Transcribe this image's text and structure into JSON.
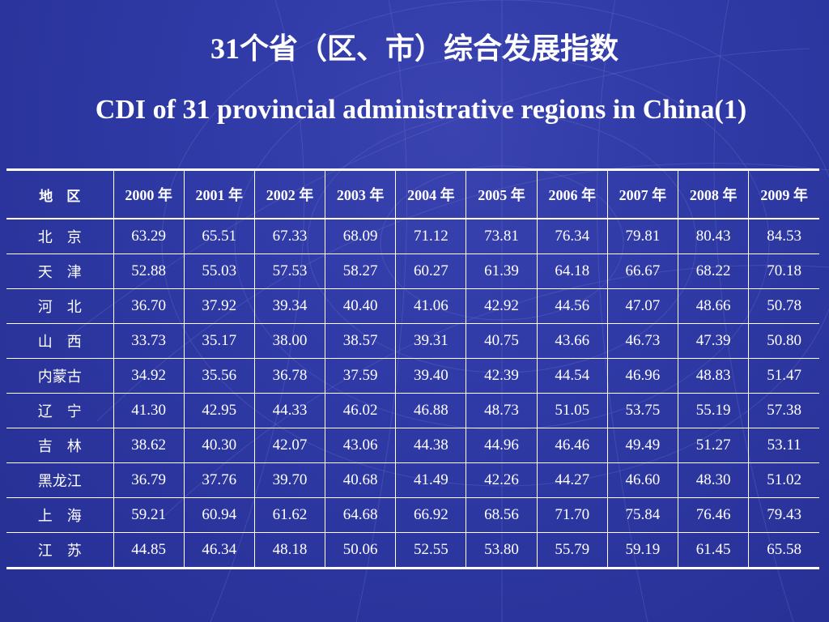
{
  "title_cn": "31个省（区、市）综合发展指数",
  "title_en": "CDI of 31 provincial administrative regions in China(1)",
  "table": {
    "headers": [
      "地　区",
      "2000 年",
      "2001 年",
      "2002 年",
      "2003 年",
      "2004 年",
      "2005 年",
      "2006 年",
      "2007 年",
      "2008 年",
      "2009 年"
    ],
    "rows": [
      [
        "北　京",
        "63.29",
        "65.51",
        "67.33",
        "68.09",
        "71.12",
        "73.81",
        "76.34",
        "79.81",
        "80.43",
        "84.53"
      ],
      [
        "天　津",
        "52.88",
        "55.03",
        "57.53",
        "58.27",
        "60.27",
        "61.39",
        "64.18",
        "66.67",
        "68.22",
        "70.18"
      ],
      [
        "河　北",
        "36.70",
        "37.92",
        "39.34",
        "40.40",
        "41.06",
        "42.92",
        "44.56",
        "47.07",
        "48.66",
        "50.78"
      ],
      [
        "山　西",
        "33.73",
        "35.17",
        "38.00",
        "38.57",
        "39.31",
        "40.75",
        "43.66",
        "46.73",
        "47.39",
        "50.80"
      ],
      [
        "内蒙古",
        "34.92",
        "35.56",
        "36.78",
        "37.59",
        "39.40",
        "42.39",
        "44.54",
        "46.96",
        "48.83",
        "51.47"
      ],
      [
        "辽　宁",
        "41.30",
        "42.95",
        "44.33",
        "46.02",
        "46.88",
        "48.73",
        "51.05",
        "53.75",
        "55.19",
        "57.38"
      ],
      [
        "吉　林",
        "38.62",
        "40.30",
        "42.07",
        "43.06",
        "44.38",
        "44.96",
        "46.46",
        "49.49",
        "51.27",
        "53.11"
      ],
      [
        "黑龙江",
        "36.79",
        "37.76",
        "39.70",
        "40.68",
        "41.49",
        "42.26",
        "44.27",
        "46.60",
        "48.30",
        "51.02"
      ],
      [
        "上　海",
        "59.21",
        "60.94",
        "61.62",
        "64.68",
        "66.92",
        "68.56",
        "71.70",
        "75.84",
        "76.46",
        "79.43"
      ],
      [
        "江　苏",
        "44.85",
        "46.34",
        "48.18",
        "50.06",
        "52.55",
        "53.80",
        "55.79",
        "59.19",
        "61.45",
        "65.58"
      ]
    ]
  }
}
